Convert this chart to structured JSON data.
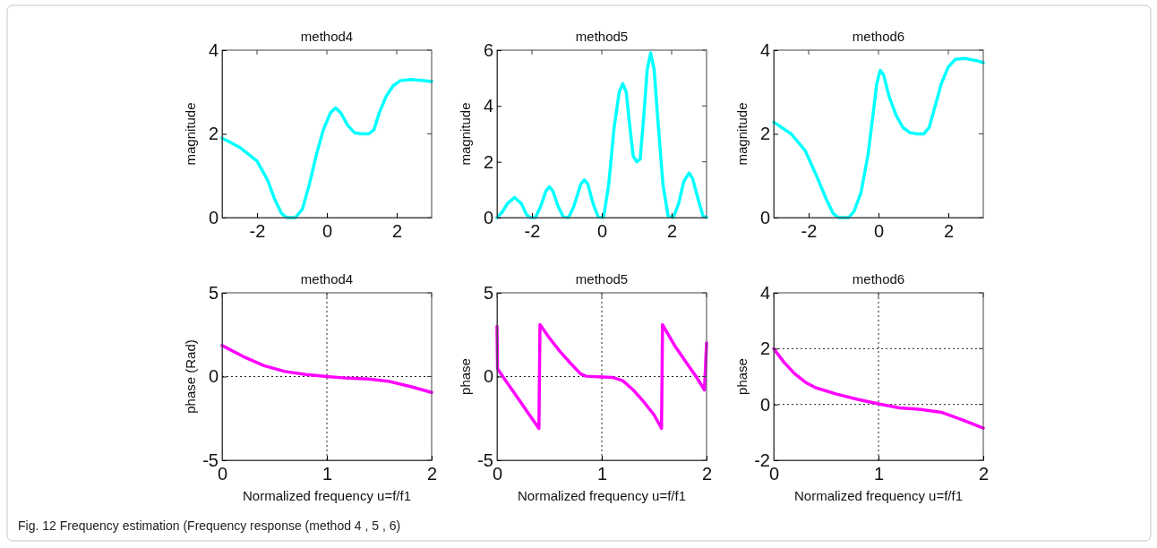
{
  "chart_data": [
    {
      "type": "line",
      "title": "method4",
      "ylabel": "magnitude",
      "xlim": [
        -3,
        3
      ],
      "xticks": [
        -2,
        0,
        2
      ],
      "ylim": [
        0,
        4
      ],
      "yticks": [
        0,
        2,
        4
      ],
      "grid": false,
      "annotations": [
        "Fig. 12 Frequency estimation (Frequency response (method 4 , 5 , 6)"
      ],
      "x": [
        -3,
        -2.5,
        -2,
        -1.7,
        -1.5,
        -1.3,
        -1.15,
        -0.9,
        -0.7,
        -0.5,
        -0.3,
        -0.1,
        0.1,
        0.25,
        0.4,
        0.6,
        0.8,
        1,
        1.2,
        1.35,
        1.5,
        1.7,
        1.9,
        2.1,
        2.4,
        2.7,
        3
      ],
      "series": [
        {
          "color": "#00ffff",
          "values": [
            1.9,
            1.68,
            1.35,
            0.9,
            0.45,
            0.1,
            0,
            0,
            0.2,
            0.8,
            1.5,
            2.1,
            2.5,
            2.62,
            2.5,
            2.2,
            2.02,
            2,
            2,
            2.1,
            2.5,
            2.9,
            3.15,
            3.27,
            3.3,
            3.28,
            3.25
          ]
        }
      ]
    },
    {
      "type": "line",
      "title": "method5",
      "ylabel": "magnitude",
      "xlim": [
        -3,
        3
      ],
      "xticks": [
        -2,
        0,
        2
      ],
      "ylim": [
        0,
        6
      ],
      "yticks": [
        0,
        2,
        4,
        6
      ],
      "grid": false,
      "x": [
        -3,
        -2.85,
        -2.7,
        -2.5,
        -2.3,
        -2.15,
        -2.05,
        -1.9,
        -1.75,
        -1.6,
        -1.5,
        -1.4,
        -1.25,
        -1.1,
        -0.95,
        -0.8,
        -0.6,
        -0.5,
        -0.4,
        -0.25,
        -0.1,
        0.05,
        0.2,
        0.35,
        0.5,
        0.6,
        0.7,
        0.8,
        0.9,
        1,
        1.1,
        1.2,
        1.3,
        1.4,
        1.5,
        1.6,
        1.75,
        1.9,
        2.05,
        2.2,
        2.35,
        2.5,
        2.6,
        2.75,
        2.9,
        3
      ],
      "series": [
        {
          "color": "#00ffff",
          "values": [
            0,
            0.2,
            0.5,
            0.72,
            0.5,
            0.1,
            0,
            0,
            0.4,
            0.95,
            1.1,
            0.95,
            0.4,
            0.02,
            0,
            0.4,
            1.2,
            1.35,
            1.2,
            0.5,
            0.02,
            0,
            1.2,
            3.2,
            4.5,
            4.8,
            4.5,
            3.3,
            2.2,
            2,
            2.1,
            3.6,
            5.3,
            5.9,
            5.3,
            3.6,
            1.2,
            0.05,
            0,
            0.5,
            1.3,
            1.6,
            1.4,
            0.7,
            0.05,
            0
          ]
        }
      ]
    },
    {
      "type": "line",
      "title": "method6",
      "ylabel": "magnitude",
      "xlim": [
        -3,
        3
      ],
      "xticks": [
        -2,
        0,
        2
      ],
      "ylim": [
        0,
        4
      ],
      "yticks": [
        0,
        2,
        4
      ],
      "grid": false,
      "x": [
        -3,
        -2.5,
        -2.1,
        -1.8,
        -1.5,
        -1.3,
        -1.15,
        -0.85,
        -0.7,
        -0.5,
        -0.3,
        -0.15,
        -0.05,
        0.05,
        0.15,
        0.3,
        0.5,
        0.7,
        0.9,
        1.1,
        1.3,
        1.45,
        1.6,
        1.8,
        2,
        2.2,
        2.5,
        2.8,
        3
      ],
      "series": [
        {
          "color": "#00ffff",
          "values": [
            2.28,
            2,
            1.6,
            1.05,
            0.45,
            0.1,
            0,
            0,
            0.15,
            0.6,
            1.5,
            2.5,
            3.2,
            3.52,
            3.4,
            2.9,
            2.45,
            2.15,
            2.03,
            2,
            2,
            2.15,
            2.6,
            3.2,
            3.6,
            3.78,
            3.8,
            3.75,
            3.7
          ]
        }
      ]
    },
    {
      "type": "line",
      "title": "method4",
      "ylabel": "phase (Rad)",
      "xlabel": "Normalized frequency u=f/f1",
      "xlim": [
        0,
        2
      ],
      "xticks": [
        0,
        1,
        2
      ],
      "ylim": [
        -5,
        5
      ],
      "yticks": [
        -5,
        0,
        5
      ],
      "grid": true,
      "x": [
        0,
        0.2,
        0.4,
        0.6,
        0.8,
        1,
        1.2,
        1.4,
        1.6,
        1.8,
        2
      ],
      "series": [
        {
          "color": "#ff00ff",
          "values": [
            1.85,
            1.2,
            0.65,
            0.3,
            0.12,
            0,
            -0.1,
            -0.15,
            -0.3,
            -0.6,
            -0.95
          ]
        }
      ]
    },
    {
      "type": "line",
      "title": "method5",
      "ylabel": "phase",
      "xlabel": "Normalized frequency u=f/f1",
      "xlim": [
        0,
        2
      ],
      "xticks": [
        0,
        1,
        2
      ],
      "ylim": [
        -5,
        5
      ],
      "yticks": [
        -5,
        0,
        5
      ],
      "grid": true,
      "x": [
        0,
        0.005,
        0.1,
        0.2,
        0.3,
        0.4,
        0.41,
        0.5,
        0.6,
        0.7,
        0.8,
        0.85,
        1,
        1.1,
        1.2,
        1.3,
        1.4,
        1.5,
        1.57,
        1.58,
        1.7,
        1.8,
        1.9,
        1.98,
        2
      ],
      "series": [
        {
          "color": "#ff00ff",
          "values": [
            3,
            0.45,
            -0.4,
            -1.3,
            -2.2,
            -3.1,
            3.1,
            2.3,
            1.5,
            0.8,
            0.15,
            0.02,
            -0.03,
            -0.05,
            -0.25,
            -0.8,
            -1.5,
            -2.3,
            -3.1,
            3.1,
            1.8,
            0.9,
            0,
            -0.8,
            2
          ]
        }
      ]
    },
    {
      "type": "line",
      "title": "method6",
      "ylabel": "phase",
      "xlabel": "Normalized frequency u=f/f1",
      "xlim": [
        0,
        2
      ],
      "xticks": [
        0,
        1,
        2
      ],
      "ylim": [
        -2,
        4
      ],
      "yticks": [
        -2,
        0,
        2,
        4
      ],
      "grid": true,
      "x": [
        0,
        0.1,
        0.2,
        0.3,
        0.4,
        0.6,
        0.8,
        1,
        1.2,
        1.4,
        1.6,
        1.8,
        2
      ],
      "series": [
        {
          "color": "#ff00ff",
          "values": [
            2,
            1.5,
            1.1,
            0.8,
            0.6,
            0.37,
            0.18,
            0.02,
            -0.12,
            -0.18,
            -0.28,
            -0.55,
            -0.85
          ]
        }
      ]
    }
  ]
}
